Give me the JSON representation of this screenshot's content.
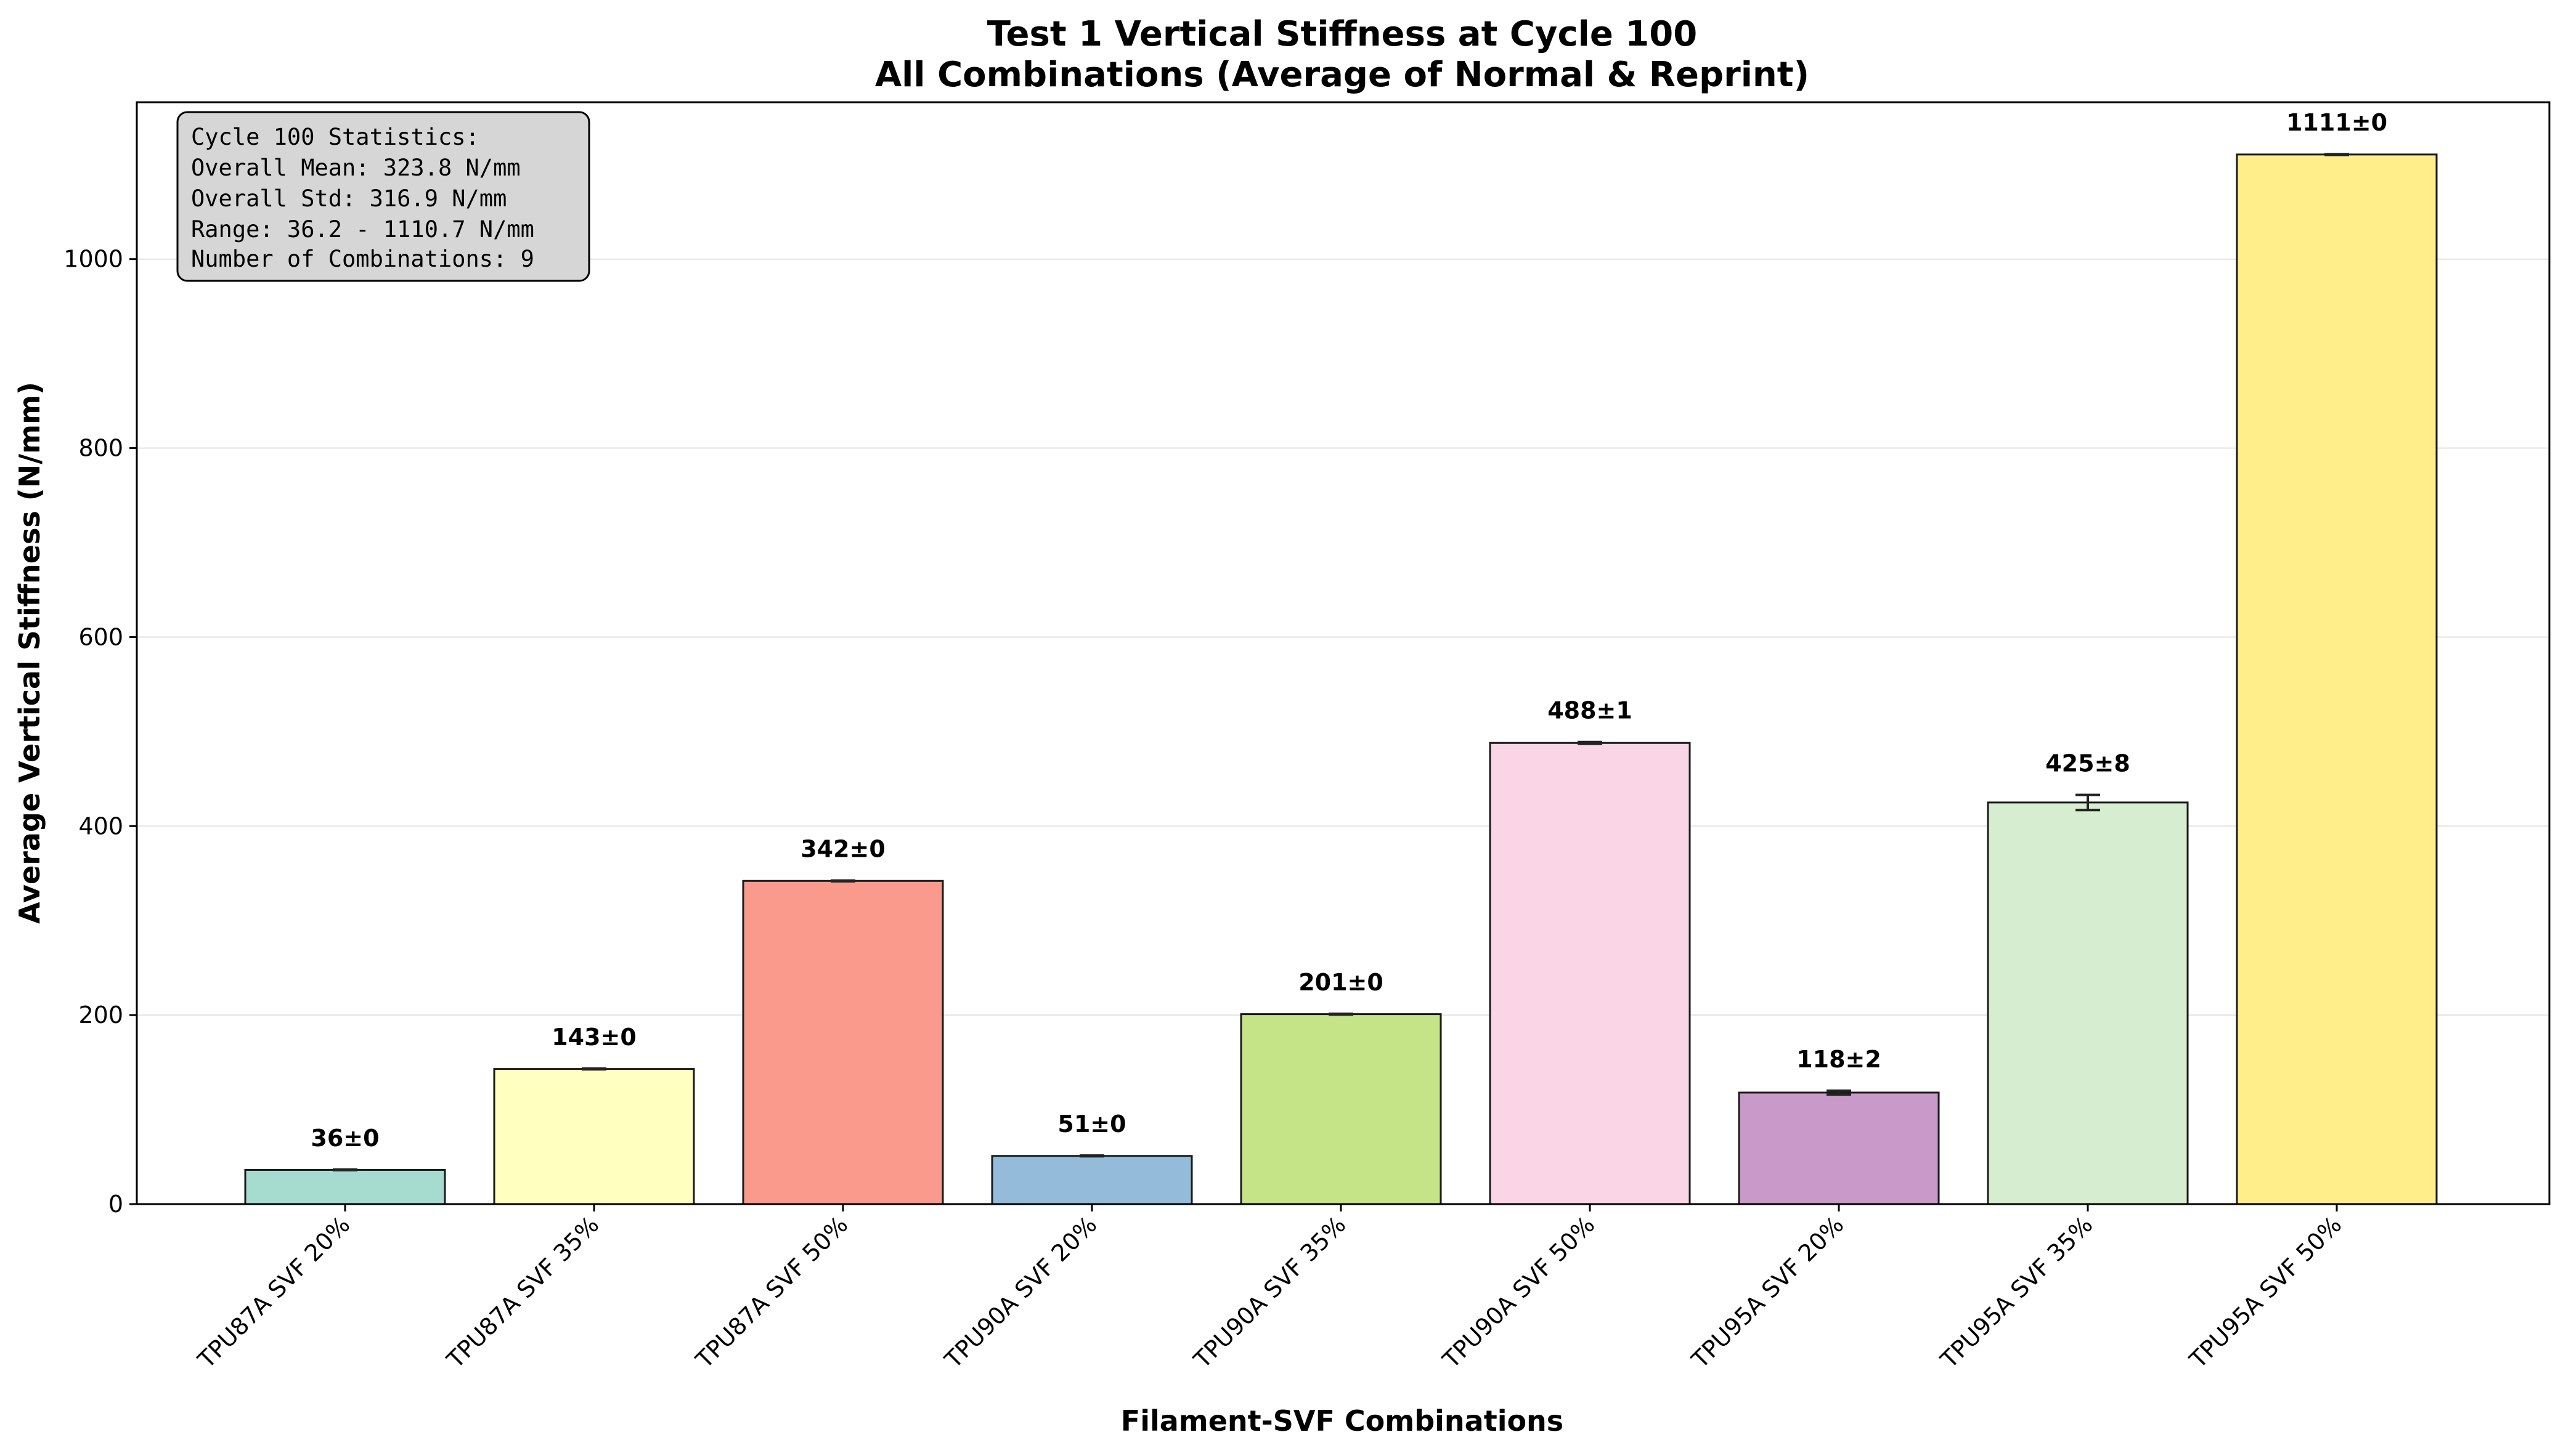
{
  "chart_data": {
    "type": "bar",
    "title": "Test 1 Vertical Stiffness at Cycle 100",
    "subtitle": "All Combinations (Average of Normal & Reprint)",
    "xlabel": "Filament-SVF Combinations",
    "ylabel": "Average Vertical Stiffness (N/mm)",
    "categories": [
      "TPU87A SVF 20%",
      "TPU87A SVF 35%",
      "TPU87A SVF 50%",
      "TPU90A SVF 20%",
      "TPU90A SVF 35%",
      "TPU90A SVF 50%",
      "TPU95A SVF 20%",
      "TPU95A SVF 35%",
      "TPU95A SVF 50%"
    ],
    "values": [
      36.2,
      143,
      342,
      51,
      201,
      488,
      118,
      425,
      1110.7
    ],
    "errors": [
      0.3,
      0.4,
      0.4,
      0.4,
      0.4,
      1,
      2,
      8,
      0.4
    ],
    "data_labels": [
      "36±0",
      "143±0",
      "342±0",
      "51±0",
      "201±0",
      "488±1",
      "118±2",
      "425±8",
      "1111±0"
    ],
    "colors": [
      "#a6dbd0",
      "#ffffc0",
      "#f99a8c",
      "#94bcda",
      "#c4e487",
      "#f9d5e6",
      "#c999c9",
      "#d6edcf",
      "#ffee8a"
    ],
    "ylim": [
      0,
      1166
    ],
    "yticks": [
      0,
      200,
      400,
      600,
      800,
      1000
    ],
    "grid": "y",
    "stats_box": {
      "lines": [
        "Cycle 100 Statistics:",
        "Overall Mean: 323.8 N/mm",
        "Overall Std: 316.9 N/mm",
        "Range: 36.2 - 1110.7 N/mm",
        "Number of Combinations: 9"
      ]
    }
  }
}
